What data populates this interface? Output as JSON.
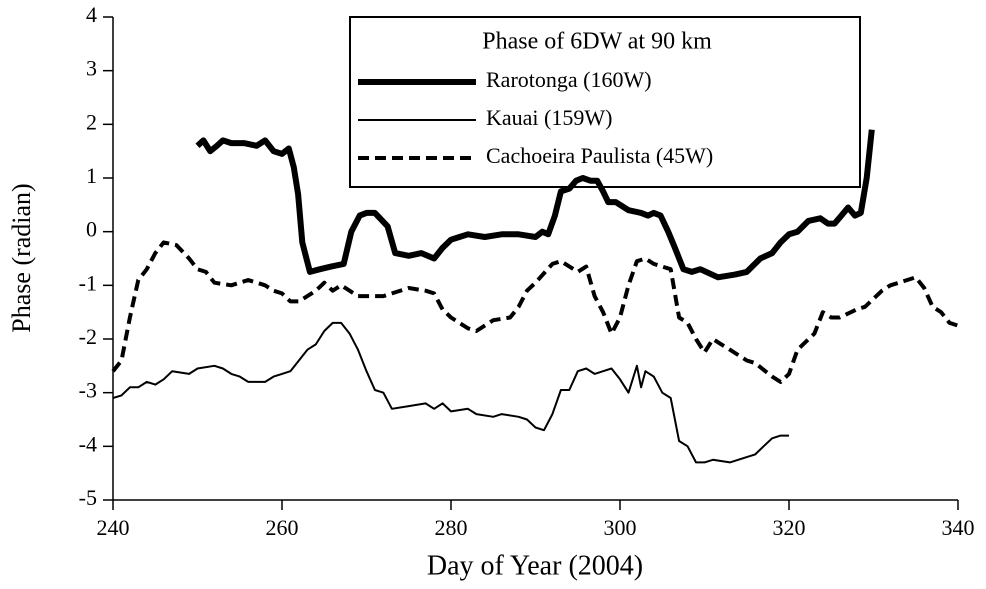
{
  "chart_data": {
    "type": "line",
    "xlabel": "Day of Year  (2004)",
    "ylabel": "Phase (radian)",
    "legend_title": "Phase of 6DW at 90 km",
    "xlim": [
      240,
      340
    ],
    "xticks": [
      240,
      260,
      280,
      300,
      320,
      340
    ],
    "ylim": [
      -5,
      4
    ],
    "yticks": [
      -5,
      -4,
      -3,
      -2,
      -1,
      0,
      1,
      2,
      3,
      4
    ],
    "grid": false,
    "series": [
      {
        "name": "Rarotonga (160W)",
        "color": "#000000",
        "style": "thick",
        "x": [
          250,
          250.7,
          251.5,
          252.3,
          253,
          254,
          255.5,
          257,
          258,
          259,
          260,
          260.8,
          261.4,
          261.9,
          262.4,
          263.3,
          264.5,
          265.8,
          267.3,
          268.2,
          269.2,
          270,
          271,
          271.6,
          272.5,
          273.4,
          275,
          276.5,
          278,
          279,
          280,
          281,
          282,
          284,
          286,
          288,
          290,
          290.8,
          291.5,
          292.3,
          293,
          294,
          294.8,
          295.6,
          296.5,
          297.3,
          298,
          298.6,
          299.5,
          301,
          302.5,
          303.3,
          304,
          304.8,
          305.7,
          306.5,
          307.5,
          308.5,
          309.5,
          311.6,
          313.6,
          315,
          316.6,
          318,
          319,
          320,
          321,
          322.3,
          323.7,
          324.6,
          325.4,
          326.2,
          327,
          327.8,
          328.5,
          329.2,
          329.8
        ],
        "values": [
          1.6,
          1.7,
          1.5,
          1.6,
          1.7,
          1.65,
          1.65,
          1.6,
          1.7,
          1.5,
          1.45,
          1.55,
          1.2,
          0.7,
          -0.2,
          -0.75,
          -0.7,
          -0.65,
          -0.6,
          0.0,
          0.3,
          0.35,
          0.35,
          0.25,
          0.1,
          -0.4,
          -0.45,
          -0.4,
          -0.5,
          -0.3,
          -0.15,
          -0.1,
          -0.05,
          -0.1,
          -0.05,
          -0.05,
          -0.1,
          0.0,
          -0.05,
          0.3,
          0.75,
          0.8,
          0.95,
          1.0,
          0.95,
          0.95,
          0.75,
          0.55,
          0.55,
          0.4,
          0.35,
          0.3,
          0.35,
          0.3,
          0.0,
          -0.3,
          -0.7,
          -0.75,
          -0.7,
          -0.85,
          -0.8,
          -0.75,
          -0.5,
          -0.4,
          -0.2,
          -0.05,
          0.0,
          0.2,
          0.25,
          0.15,
          0.15,
          0.3,
          0.45,
          0.3,
          0.35,
          1.0,
          1.9
        ]
      },
      {
        "name": "Kauai (159W)",
        "color": "#000000",
        "style": "thin",
        "x": [
          240,
          241,
          242,
          243,
          244,
          245,
          246,
          247,
          249,
          250,
          252,
          253,
          254,
          255,
          256,
          258,
          259,
          260,
          261,
          262,
          263,
          264,
          265,
          266,
          267,
          268,
          268.5,
          269,
          270,
          271,
          272,
          273,
          275,
          277,
          278,
          279,
          280,
          282,
          283,
          285,
          286,
          288,
          289,
          290,
          291,
          292,
          293,
          294,
          295,
          296,
          297,
          298,
          299,
          300,
          301,
          302,
          302.5,
          303,
          304,
          305,
          306,
          307,
          308,
          309,
          310,
          311,
          313,
          315,
          316,
          317,
          318,
          319,
          320
        ],
        "values": [
          -3.1,
          -3.05,
          -2.9,
          -2.9,
          -2.8,
          -2.85,
          -2.75,
          -2.6,
          -2.65,
          -2.55,
          -2.5,
          -2.55,
          -2.65,
          -2.7,
          -2.8,
          -2.8,
          -2.7,
          -2.65,
          -2.6,
          -2.4,
          -2.2,
          -2.1,
          -1.85,
          -1.7,
          -1.7,
          -1.9,
          -2.05,
          -2.2,
          -2.6,
          -2.95,
          -3.0,
          -3.3,
          -3.25,
          -3.2,
          -3.3,
          -3.2,
          -3.35,
          -3.3,
          -3.4,
          -3.45,
          -3.4,
          -3.45,
          -3.5,
          -3.65,
          -3.7,
          -3.4,
          -2.95,
          -2.95,
          -2.6,
          -2.55,
          -2.65,
          -2.6,
          -2.55,
          -2.75,
          -3.0,
          -2.5,
          -2.9,
          -2.6,
          -2.7,
          -3.0,
          -3.1,
          -3.9,
          -4.0,
          -4.3,
          -4.3,
          -4.25,
          -4.3,
          -4.2,
          -4.15,
          -4.0,
          -3.85,
          -3.8,
          -3.8
        ]
      },
      {
        "name": "Cachoeira Paulista (45W)",
        "color": "#000000",
        "style": "dashed",
        "x": [
          240,
          241,
          242,
          243,
          244,
          245,
          246,
          247.5,
          249,
          250,
          251,
          252,
          254,
          255,
          256,
          258,
          259,
          260,
          261,
          262,
          263,
          264,
          265,
          266,
          267,
          268,
          269,
          272,
          273,
          275,
          277,
          278,
          279,
          280,
          282,
          283,
          284,
          285,
          287,
          288,
          289,
          290,
          292,
          293,
          295,
          296,
          297,
          298,
          299,
          300,
          301,
          302,
          303,
          304,
          305,
          306,
          307,
          308,
          309,
          310,
          311,
          312,
          313,
          315,
          316,
          318,
          319,
          320,
          321,
          323,
          324,
          325,
          326,
          328,
          329,
          331,
          332,
          333,
          335,
          336,
          337,
          338,
          339,
          340
        ],
        "values": [
          -2.6,
          -2.4,
          -1.6,
          -0.9,
          -0.7,
          -0.4,
          -0.2,
          -0.25,
          -0.5,
          -0.7,
          -0.75,
          -0.95,
          -1.0,
          -0.95,
          -0.9,
          -1.0,
          -1.1,
          -1.15,
          -1.3,
          -1.3,
          -1.2,
          -1.1,
          -0.95,
          -1.1,
          -1.0,
          -1.1,
          -1.2,
          -1.2,
          -1.15,
          -1.05,
          -1.1,
          -1.15,
          -1.45,
          -1.6,
          -1.8,
          -1.85,
          -1.75,
          -1.65,
          -1.6,
          -1.4,
          -1.1,
          -0.95,
          -0.6,
          -0.55,
          -0.75,
          -0.65,
          -1.2,
          -1.5,
          -1.9,
          -1.6,
          -1.0,
          -0.55,
          -0.5,
          -0.6,
          -0.65,
          -0.7,
          -1.6,
          -1.7,
          -2.0,
          -2.25,
          -2.0,
          -2.1,
          -2.2,
          -2.4,
          -2.45,
          -2.7,
          -2.8,
          -2.65,
          -2.2,
          -1.9,
          -1.5,
          -1.6,
          -1.6,
          -1.45,
          -1.4,
          -1.1,
          -1.0,
          -0.95,
          -0.85,
          -1.05,
          -1.4,
          -1.5,
          -1.7,
          -1.75
        ]
      }
    ]
  }
}
